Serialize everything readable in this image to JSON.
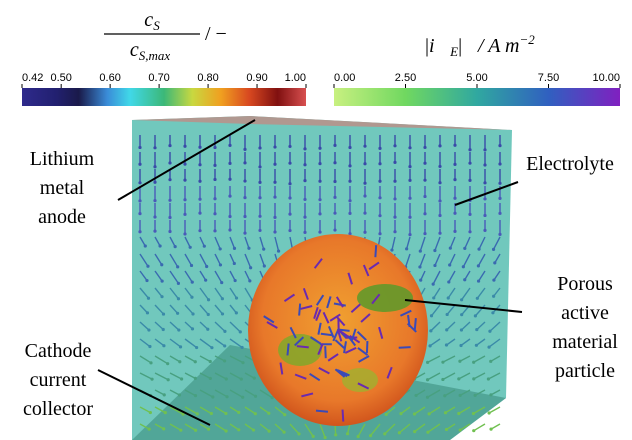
{
  "colorbars": [
    {
      "title": {
        "numerator": "c",
        "numerator_sub": "S",
        "denominator": "c",
        "denominator_sub": "S,max",
        "unit": "/ −"
      },
      "range": [
        0.42,
        1.0
      ],
      "ticks": [
        {
          "value": 0.42,
          "label": "0.42"
        },
        {
          "value": 0.5,
          "label": "0.50"
        },
        {
          "value": 0.6,
          "label": "0.60"
        },
        {
          "value": 0.7,
          "label": "0.70"
        },
        {
          "value": 0.8,
          "label": "0.80"
        },
        {
          "value": 0.9,
          "label": "0.90"
        },
        {
          "value": 1.0,
          "label": "1.00"
        }
      ]
    },
    {
      "title": {
        "symbol": "i⃗",
        "symbol_sub": "E",
        "unit": "/ A m",
        "unit_sup": "−2"
      },
      "range": [
        0,
        10
      ],
      "ticks": [
        {
          "value": 0,
          "label": "0.00"
        },
        {
          "value": 2.5,
          "label": "2.50"
        },
        {
          "value": 5,
          "label": "5.00"
        },
        {
          "value": 7.5,
          "label": "7.50"
        },
        {
          "value": 10,
          "label": "10.00"
        }
      ]
    }
  ],
  "annotations": [
    {
      "lines": [
        "Lithium",
        "metal",
        "anode"
      ]
    },
    {
      "lines": [
        "Electrolyte"
      ]
    },
    {
      "lines": [
        "Porous",
        "active",
        "material",
        "particle"
      ]
    },
    {
      "lines": [
        "Cathode",
        "current",
        "collector"
      ]
    }
  ]
}
